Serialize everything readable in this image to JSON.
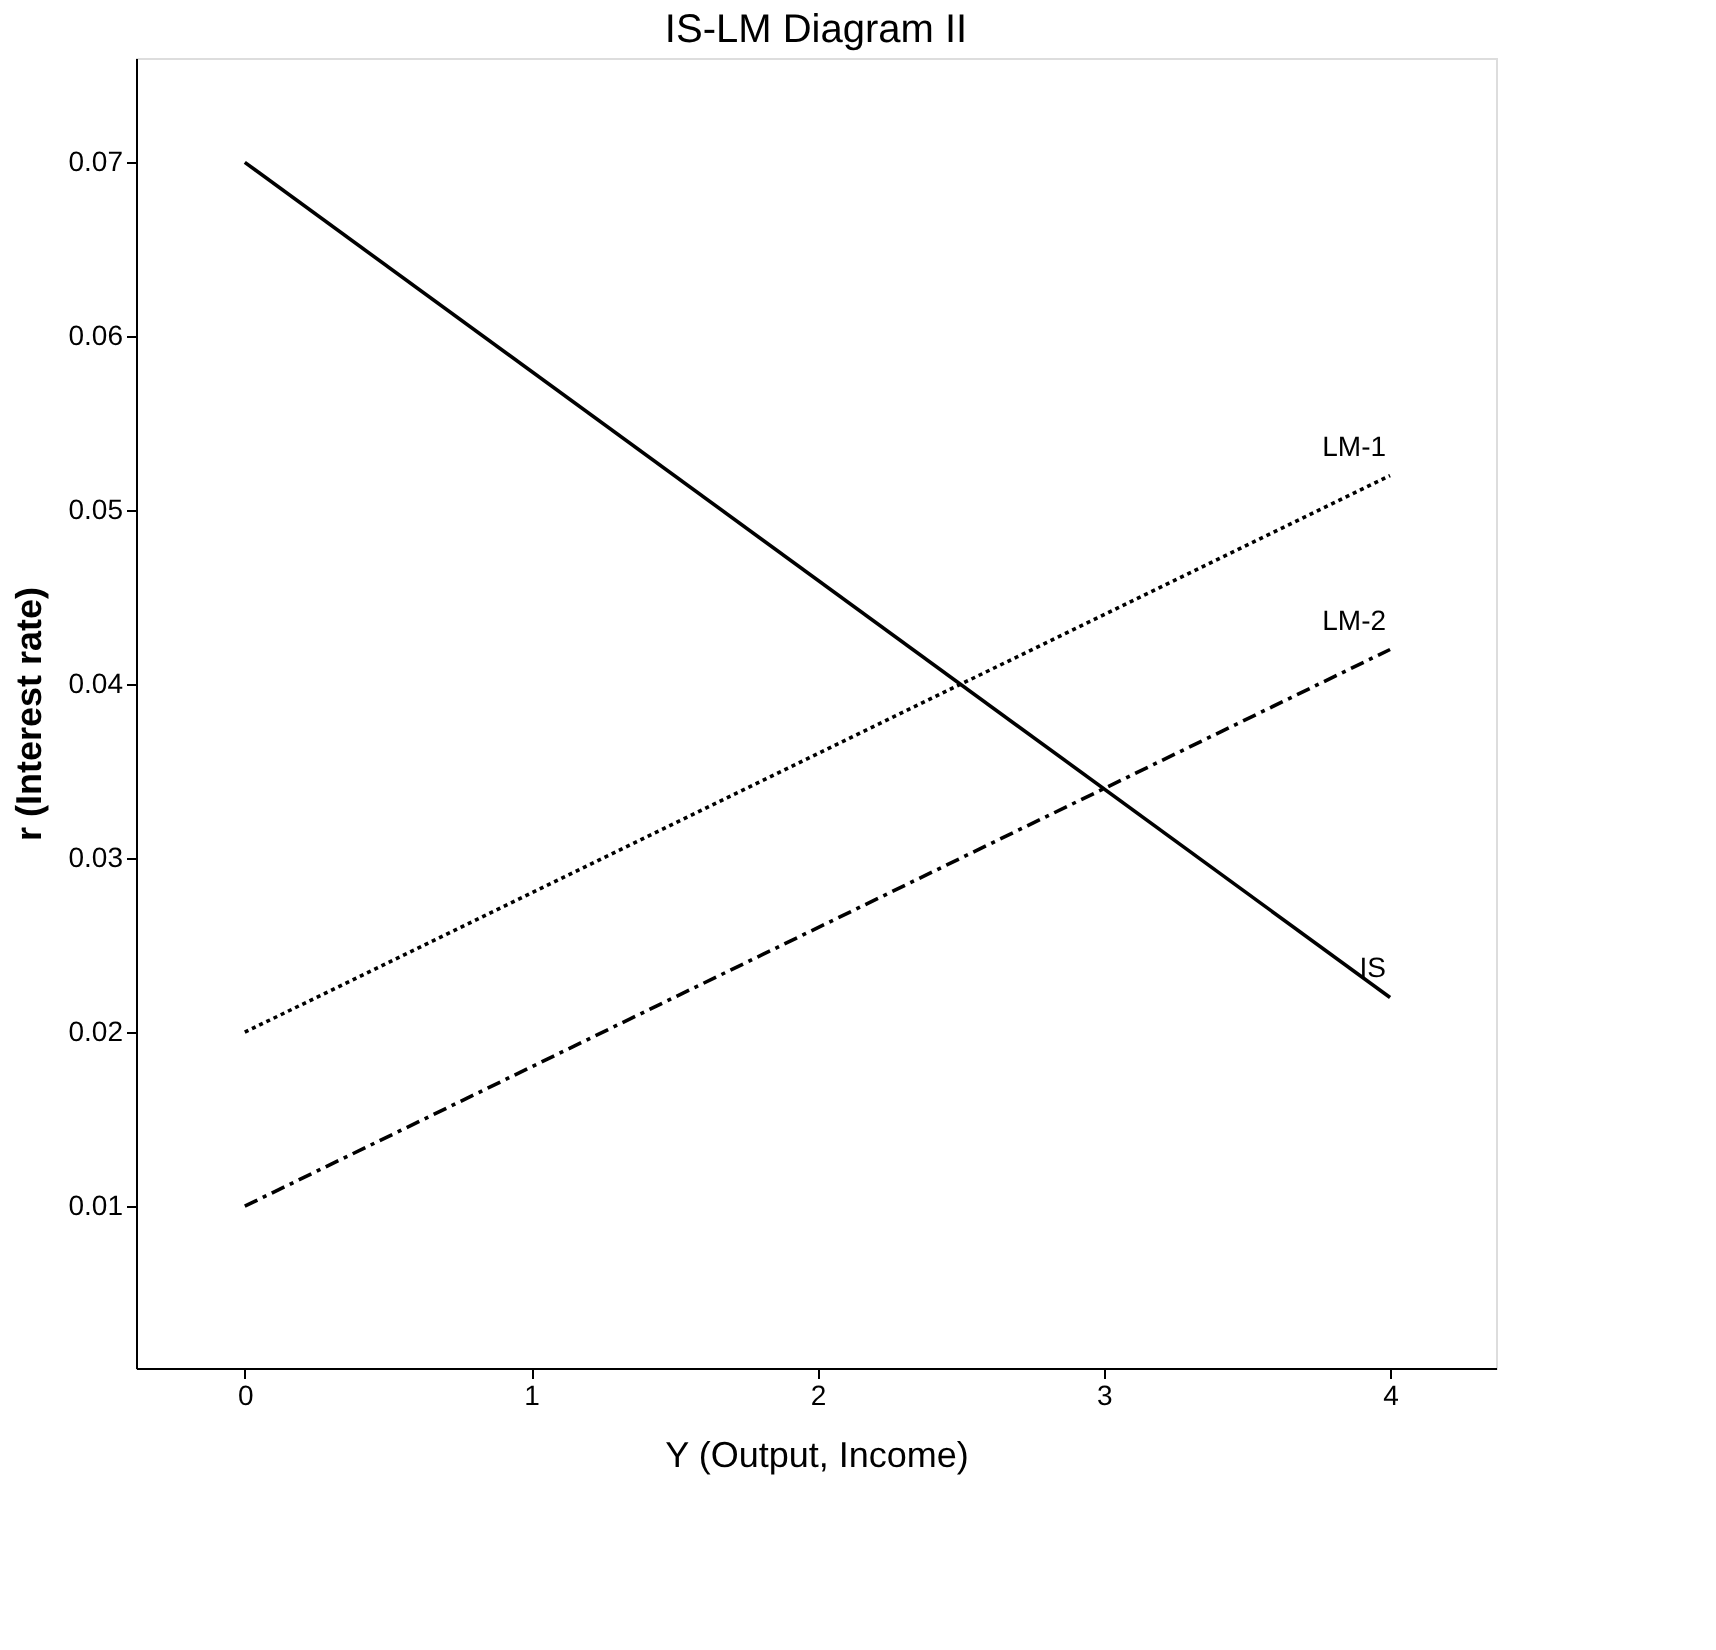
{
  "chart_data": {
    "type": "line",
    "title": "IS-LM Diagram II",
    "xlabel": "Y (Output, Income)",
    "ylabel": "r (Interest rate)",
    "x": [
      0,
      4
    ],
    "xlim": [
      -0.38,
      4.37
    ],
    "xticks": [
      0,
      1,
      2,
      3,
      4
    ],
    "ylim": [
      0.0007,
      0.076
    ],
    "yticks": [
      0.01,
      0.02,
      0.03,
      0.04,
      0.05,
      0.06,
      0.07
    ],
    "grid": false,
    "marker": "none",
    "series": [
      {
        "name": "IS",
        "color": "#000000",
        "values": [
          0.07,
          0.022
        ],
        "line_style": "solid"
      },
      {
        "name": "LM-1",
        "color": "#000000",
        "values": [
          0.02,
          0.052
        ],
        "line_style": "dotted"
      },
      {
        "name": "LM-2",
        "color": "#000000",
        "values": [
          0.01,
          0.042
        ],
        "line_style": "dashed"
      }
    ]
  }
}
